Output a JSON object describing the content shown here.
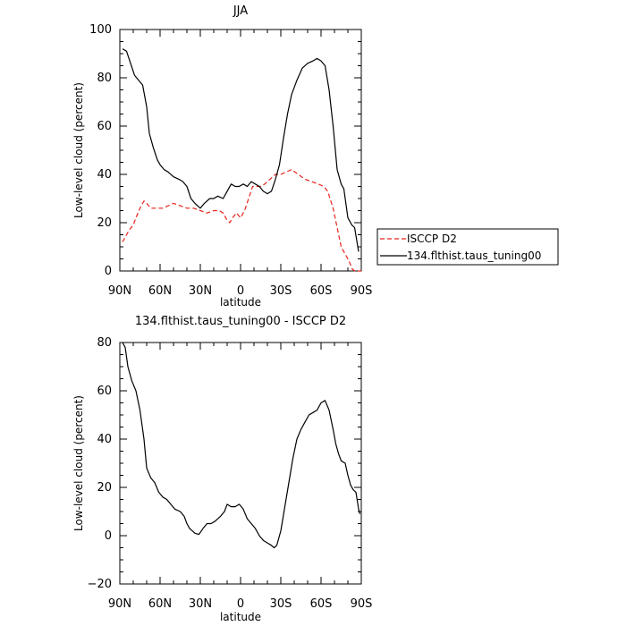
{
  "chart_data": [
    {
      "type": "line",
      "title": "JJA",
      "xlabel": "latitude",
      "ylabel": "Low-level cloud (percent)",
      "xlim": [
        90,
        -90
      ],
      "ylim": [
        0,
        100
      ],
      "x_ticks": [
        {
          "value": 90,
          "label": "90N"
        },
        {
          "value": 60,
          "label": "60N"
        },
        {
          "value": 30,
          "label": "30N"
        },
        {
          "value": 0,
          "label": "0"
        },
        {
          "value": -30,
          "label": "30S"
        },
        {
          "value": -60,
          "label": "60S"
        },
        {
          "value": -90,
          "label": "90S"
        }
      ],
      "y_ticks": [
        0,
        20,
        40,
        60,
        80,
        100
      ],
      "legend": {
        "placement": "right"
      },
      "series": [
        {
          "name": "ISCCP D2",
          "color": "#e8231c",
          "dash": "dashed",
          "points": [
            [
              88,
              12
            ],
            [
              85,
              15
            ],
            [
              83,
              17
            ],
            [
              80,
              19
            ],
            [
              78,
              22
            ],
            [
              75,
              26
            ],
            [
              72,
              29
            ],
            [
              70,
              28
            ],
            [
              67,
              26
            ],
            [
              63,
              26
            ],
            [
              58,
              26
            ],
            [
              54,
              27
            ],
            [
              50,
              28
            ],
            [
              45,
              27
            ],
            [
              40,
              26
            ],
            [
              35,
              26
            ],
            [
              30,
              25
            ],
            [
              25,
              24
            ],
            [
              20,
              25
            ],
            [
              16,
              25
            ],
            [
              13,
              24
            ],
            [
              10,
              21
            ],
            [
              8,
              20
            ],
            [
              6,
              22
            ],
            [
              3,
              24
            ],
            [
              0,
              22
            ],
            [
              -3,
              25
            ],
            [
              -6,
              30
            ],
            [
              -9,
              35
            ],
            [
              -12,
              35
            ],
            [
              -15,
              35
            ],
            [
              -18,
              36
            ],
            [
              -22,
              38
            ],
            [
              -26,
              40
            ],
            [
              -30,
              40
            ],
            [
              -34,
              41
            ],
            [
              -38,
              42
            ],
            [
              -43,
              40
            ],
            [
              -48,
              38
            ],
            [
              -53,
              37
            ],
            [
              -58,
              36
            ],
            [
              -62,
              35
            ],
            [
              -65,
              33
            ],
            [
              -69,
              26
            ],
            [
              -72,
              18
            ],
            [
              -75,
              10
            ],
            [
              -78,
              7
            ],
            [
              -81,
              4
            ],
            [
              -83,
              1
            ],
            [
              -85,
              0
            ],
            [
              -88,
              0
            ],
            [
              -90,
              0
            ]
          ]
        },
        {
          "name": "134.flthist.taus_tuning00",
          "color": "#000000",
          "dash": "solid",
          "points": [
            [
              88,
              92
            ],
            [
              85,
              91
            ],
            [
              82,
              86
            ],
            [
              79,
              81
            ],
            [
              76,
              79
            ],
            [
              73,
              77
            ],
            [
              70,
              68
            ],
            [
              68,
              57
            ],
            [
              65,
              51
            ],
            [
              62,
              46
            ],
            [
              60,
              44
            ],
            [
              57,
              42
            ],
            [
              54,
              41
            ],
            [
              50,
              39
            ],
            [
              46,
              38
            ],
            [
              43,
              37
            ],
            [
              40,
              35
            ],
            [
              37,
              30
            ],
            [
              34,
              28
            ],
            [
              30,
              26
            ],
            [
              27,
              28
            ],
            [
              23,
              30
            ],
            [
              20,
              30
            ],
            [
              17,
              31
            ],
            [
              13,
              30
            ],
            [
              10,
              33
            ],
            [
              7,
              36
            ],
            [
              4,
              35
            ],
            [
              1,
              35
            ],
            [
              -2,
              36
            ],
            [
              -5,
              35
            ],
            [
              -8,
              37
            ],
            [
              -11,
              36
            ],
            [
              -14,
              35
            ],
            [
              -17,
              33
            ],
            [
              -20,
              32
            ],
            [
              -23,
              33
            ],
            [
              -26,
              38
            ],
            [
              -29,
              44
            ],
            [
              -32,
              55
            ],
            [
              -35,
              65
            ],
            [
              -38,
              73
            ],
            [
              -42,
              79
            ],
            [
              -46,
              84
            ],
            [
              -50,
              86
            ],
            [
              -54,
              87
            ],
            [
              -57,
              88
            ],
            [
              -60,
              87
            ],
            [
              -63,
              85
            ],
            [
              -66,
              75
            ],
            [
              -69,
              60
            ],
            [
              -72,
              42
            ],
            [
              -75,
              36
            ],
            [
              -77,
              34
            ],
            [
              -80,
              22
            ],
            [
              -83,
              19
            ],
            [
              -85,
              18
            ],
            [
              -88,
              8
            ]
          ]
        }
      ]
    },
    {
      "type": "line",
      "title": "134.flthist.taus_tuning00 - ISCCP D2",
      "xlabel": "latitude",
      "ylabel": "Low-level cloud (percent)",
      "xlim": [
        90,
        -90
      ],
      "ylim": [
        -20,
        80
      ],
      "x_ticks": [
        {
          "value": 90,
          "label": "90N"
        },
        {
          "value": 60,
          "label": "60N"
        },
        {
          "value": 30,
          "label": "30N"
        },
        {
          "value": 0,
          "label": "0"
        },
        {
          "value": -30,
          "label": "30S"
        },
        {
          "value": -60,
          "label": "60S"
        },
        {
          "value": -90,
          "label": "90S"
        }
      ],
      "y_ticks": [
        -20,
        0,
        20,
        40,
        60,
        80
      ],
      "series": [
        {
          "color": "#000000",
          "dash": "solid",
          "points": [
            [
              88,
              80
            ],
            [
              86,
              78
            ],
            [
              84,
              70
            ],
            [
              81,
              64
            ],
            [
              78,
              60
            ],
            [
              75,
              52
            ],
            [
              72,
              40
            ],
            [
              70,
              28
            ],
            [
              67,
              24
            ],
            [
              64,
              22
            ],
            [
              61,
              18
            ],
            [
              58,
              16
            ],
            [
              55,
              15
            ],
            [
              52,
              13
            ],
            [
              49,
              11
            ],
            [
              45,
              10
            ],
            [
              42,
              8
            ],
            [
              40,
              5
            ],
            [
              38,
              3
            ],
            [
              36,
              2
            ],
            [
              34,
              1
            ],
            [
              31,
              0.5
            ],
            [
              28,
              3
            ],
            [
              25,
              5
            ],
            [
              22,
              5
            ],
            [
              19,
              6
            ],
            [
              15,
              8
            ],
            [
              12,
              10
            ],
            [
              10,
              13
            ],
            [
              7,
              12
            ],
            [
              4,
              12
            ],
            [
              1,
              13
            ],
            [
              -2,
              11
            ],
            [
              -5,
              7
            ],
            [
              -8,
              5
            ],
            [
              -11,
              3
            ],
            [
              -14,
              0
            ],
            [
              -17,
              -2
            ],
            [
              -20,
              -3
            ],
            [
              -23,
              -4
            ],
            [
              -25,
              -5
            ],
            [
              -27,
              -4
            ],
            [
              -30,
              2
            ],
            [
              -33,
              12
            ],
            [
              -36,
              22
            ],
            [
              -39,
              32
            ],
            [
              -42,
              40
            ],
            [
              -45,
              44
            ],
            [
              -48,
              47
            ],
            [
              -51,
              50
            ],
            [
              -54,
              51
            ],
            [
              -57,
              52
            ],
            [
              -60,
              55
            ],
            [
              -63,
              56
            ],
            [
              -66,
              52
            ],
            [
              -69,
              44
            ],
            [
              -71,
              38
            ],
            [
              -73,
              34
            ],
            [
              -75,
              31
            ],
            [
              -78,
              30
            ],
            [
              -80,
              25
            ],
            [
              -82,
              21
            ],
            [
              -84,
              19
            ],
            [
              -86,
              18
            ],
            [
              -88,
              11
            ],
            [
              -89,
              9
            ]
          ]
        }
      ]
    }
  ]
}
